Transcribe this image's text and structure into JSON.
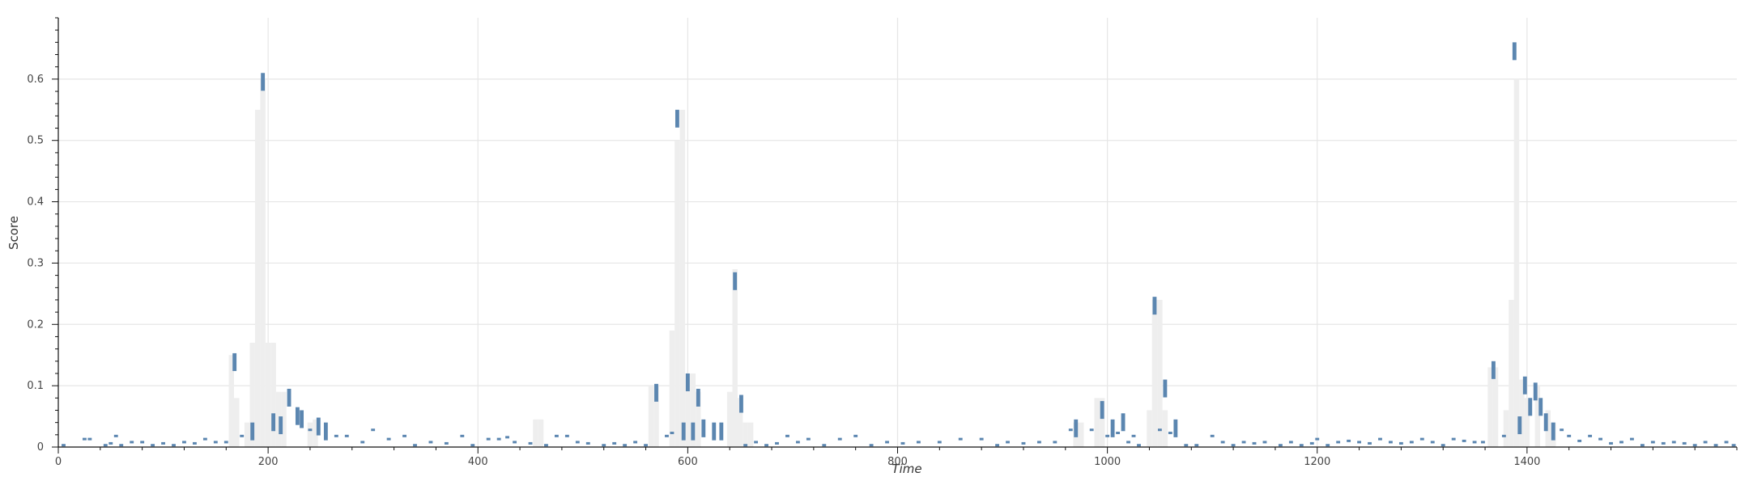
{
  "chart_data": {
    "type": "bar",
    "title": "",
    "xlabel": "Time",
    "ylabel": "Score",
    "xlim": [
      0,
      1600
    ],
    "ylim": [
      0,
      0.7
    ],
    "x_ticks": [
      0,
      200,
      400,
      600,
      800,
      1000,
      1200,
      1400
    ],
    "y_ticks": [
      0,
      0.1,
      0.2,
      0.3,
      0.4,
      0.5,
      0.6
    ],
    "grid": true,
    "legend": "none",
    "bin_width": 5,
    "colors": {
      "series": "#5b86b0",
      "band": "#eeeeee",
      "grid": "#e6e6e6",
      "axis": "#111111"
    },
    "band_values": [
      [
        165,
        0.15
      ],
      [
        170,
        0.08
      ],
      [
        180,
        0.04
      ],
      [
        185,
        0.17
      ],
      [
        190,
        0.55
      ],
      [
        195,
        0.6
      ],
      [
        200,
        0.17
      ],
      [
        205,
        0.17
      ],
      [
        210,
        0.09
      ],
      [
        215,
        0.09
      ],
      [
        240,
        0.04
      ],
      [
        245,
        0.045
      ],
      [
        455,
        0.045
      ],
      [
        460,
        0.045
      ],
      [
        565,
        0.1
      ],
      [
        570,
        0.1
      ],
      [
        585,
        0.19
      ],
      [
        590,
        0.5
      ],
      [
        595,
        0.55
      ],
      [
        600,
        0.12
      ],
      [
        605,
        0.12
      ],
      [
        610,
        0.09
      ],
      [
        640,
        0.09
      ],
      [
        645,
        0.29
      ],
      [
        650,
        0.08
      ],
      [
        655,
        0.04
      ],
      [
        660,
        0.04
      ],
      [
        970,
        0.04
      ],
      [
        975,
        0.04
      ],
      [
        990,
        0.08
      ],
      [
        995,
        0.08
      ],
      [
        1040,
        0.06
      ],
      [
        1045,
        0.24
      ],
      [
        1050,
        0.24
      ],
      [
        1055,
        0.06
      ],
      [
        1365,
        0.13
      ],
      [
        1370,
        0.13
      ],
      [
        1380,
        0.06
      ],
      [
        1385,
        0.24
      ],
      [
        1390,
        0.6
      ],
      [
        1395,
        0.11
      ],
      [
        1400,
        0.08
      ],
      [
        1410,
        0.1
      ],
      [
        1420,
        0.06
      ],
      [
        1425,
        0.04
      ]
    ],
    "series": [
      {
        "values": [
          [
            5,
            0.005
          ],
          [
            25,
            0.015
          ],
          [
            30,
            0.015
          ],
          [
            45,
            0.005
          ],
          [
            50,
            0.008
          ],
          [
            55,
            0.02
          ],
          [
            60,
            0.005
          ],
          [
            70,
            0.01
          ],
          [
            80,
            0.01
          ],
          [
            90,
            0.005
          ],
          [
            100,
            0.008
          ],
          [
            110,
            0.005
          ],
          [
            120,
            0.01
          ],
          [
            130,
            0.008
          ],
          [
            140,
            0.015
          ],
          [
            150,
            0.01
          ],
          [
            160,
            0.01
          ],
          [
            168,
            0.153
          ],
          [
            175,
            0.02
          ],
          [
            185,
            0.04
          ],
          [
            195,
            0.61
          ],
          [
            205,
            0.055
          ],
          [
            212,
            0.05
          ],
          [
            220,
            0.095
          ],
          [
            228,
            0.065
          ],
          [
            232,
            0.06
          ],
          [
            240,
            0.03
          ],
          [
            248,
            0.048
          ],
          [
            255,
            0.04
          ],
          [
            265,
            0.02
          ],
          [
            275,
            0.02
          ],
          [
            290,
            0.01
          ],
          [
            300,
            0.03
          ],
          [
            315,
            0.015
          ],
          [
            330,
            0.02
          ],
          [
            340,
            0.005
          ],
          [
            355,
            0.01
          ],
          [
            370,
            0.008
          ],
          [
            385,
            0.02
          ],
          [
            395,
            0.005
          ],
          [
            410,
            0.015
          ],
          [
            420,
            0.015
          ],
          [
            428,
            0.018
          ],
          [
            435,
            0.01
          ],
          [
            450,
            0.008
          ],
          [
            465,
            0.005
          ],
          [
            475,
            0.02
          ],
          [
            485,
            0.02
          ],
          [
            495,
            0.01
          ],
          [
            505,
            0.008
          ],
          [
            520,
            0.005
          ],
          [
            530,
            0.008
          ],
          [
            540,
            0.005
          ],
          [
            550,
            0.01
          ],
          [
            560,
            0.005
          ],
          [
            570,
            0.103
          ],
          [
            580,
            0.02
          ],
          [
            585,
            0.025
          ],
          [
            590,
            0.55
          ],
          [
            596,
            0.04
          ],
          [
            600,
            0.12
          ],
          [
            605,
            0.04
          ],
          [
            610,
            0.095
          ],
          [
            615,
            0.045
          ],
          [
            625,
            0.04
          ],
          [
            632,
            0.04
          ],
          [
            645,
            0.285
          ],
          [
            651,
            0.085
          ],
          [
            655,
            0.005
          ],
          [
            665,
            0.01
          ],
          [
            675,
            0.005
          ],
          [
            685,
            0.008
          ],
          [
            695,
            0.02
          ],
          [
            705,
            0.01
          ],
          [
            715,
            0.015
          ],
          [
            730,
            0.005
          ],
          [
            745,
            0.015
          ],
          [
            760,
            0.02
          ],
          [
            775,
            0.005
          ],
          [
            790,
            0.01
          ],
          [
            805,
            0.008
          ],
          [
            820,
            0.01
          ],
          [
            840,
            0.01
          ],
          [
            860,
            0.015
          ],
          [
            880,
            0.015
          ],
          [
            895,
            0.005
          ],
          [
            905,
            0.01
          ],
          [
            920,
            0.008
          ],
          [
            935,
            0.01
          ],
          [
            950,
            0.01
          ],
          [
            965,
            0.03
          ],
          [
            970,
            0.045
          ],
          [
            985,
            0.03
          ],
          [
            995,
            0.075
          ],
          [
            1000,
            0.02
          ],
          [
            1005,
            0.045
          ],
          [
            1010,
            0.025
          ],
          [
            1015,
            0.055
          ],
          [
            1020,
            0.01
          ],
          [
            1025,
            0.02
          ],
          [
            1030,
            0.005
          ],
          [
            1045,
            0.245
          ],
          [
            1050,
            0.03
          ],
          [
            1055,
            0.11
          ],
          [
            1060,
            0.025
          ],
          [
            1065,
            0.045
          ],
          [
            1075,
            0.005
          ],
          [
            1085,
            0.005
          ],
          [
            1100,
            0.02
          ],
          [
            1110,
            0.01
          ],
          [
            1120,
            0.005
          ],
          [
            1130,
            0.01
          ],
          [
            1140,
            0.008
          ],
          [
            1150,
            0.01
          ],
          [
            1165,
            0.005
          ],
          [
            1175,
            0.01
          ],
          [
            1185,
            0.005
          ],
          [
            1195,
            0.008
          ],
          [
            1200,
            0.015
          ],
          [
            1210,
            0.005
          ],
          [
            1220,
            0.01
          ],
          [
            1230,
            0.012
          ],
          [
            1240,
            0.01
          ],
          [
            1250,
            0.008
          ],
          [
            1260,
            0.015
          ],
          [
            1270,
            0.01
          ],
          [
            1280,
            0.008
          ],
          [
            1290,
            0.01
          ],
          [
            1300,
            0.015
          ],
          [
            1310,
            0.01
          ],
          [
            1320,
            0.005
          ],
          [
            1330,
            0.015
          ],
          [
            1340,
            0.012
          ],
          [
            1350,
            0.01
          ],
          [
            1358,
            0.01
          ],
          [
            1368,
            0.14
          ],
          [
            1378,
            0.02
          ],
          [
            1388,
            0.66
          ],
          [
            1393,
            0.05
          ],
          [
            1398,
            0.115
          ],
          [
            1403,
            0.08
          ],
          [
            1408,
            0.105
          ],
          [
            1413,
            0.08
          ],
          [
            1418,
            0.055
          ],
          [
            1425,
            0.04
          ],
          [
            1433,
            0.03
          ],
          [
            1440,
            0.02
          ],
          [
            1450,
            0.012
          ],
          [
            1460,
            0.02
          ],
          [
            1470,
            0.015
          ],
          [
            1480,
            0.008
          ],
          [
            1490,
            0.01
          ],
          [
            1500,
            0.015
          ],
          [
            1510,
            0.005
          ],
          [
            1520,
            0.01
          ],
          [
            1530,
            0.008
          ],
          [
            1540,
            0.01
          ],
          [
            1550,
            0.008
          ],
          [
            1560,
            0.005
          ],
          [
            1570,
            0.01
          ],
          [
            1580,
            0.005
          ],
          [
            1590,
            0.01
          ],
          [
            1597,
            0.005
          ]
        ]
      }
    ]
  }
}
